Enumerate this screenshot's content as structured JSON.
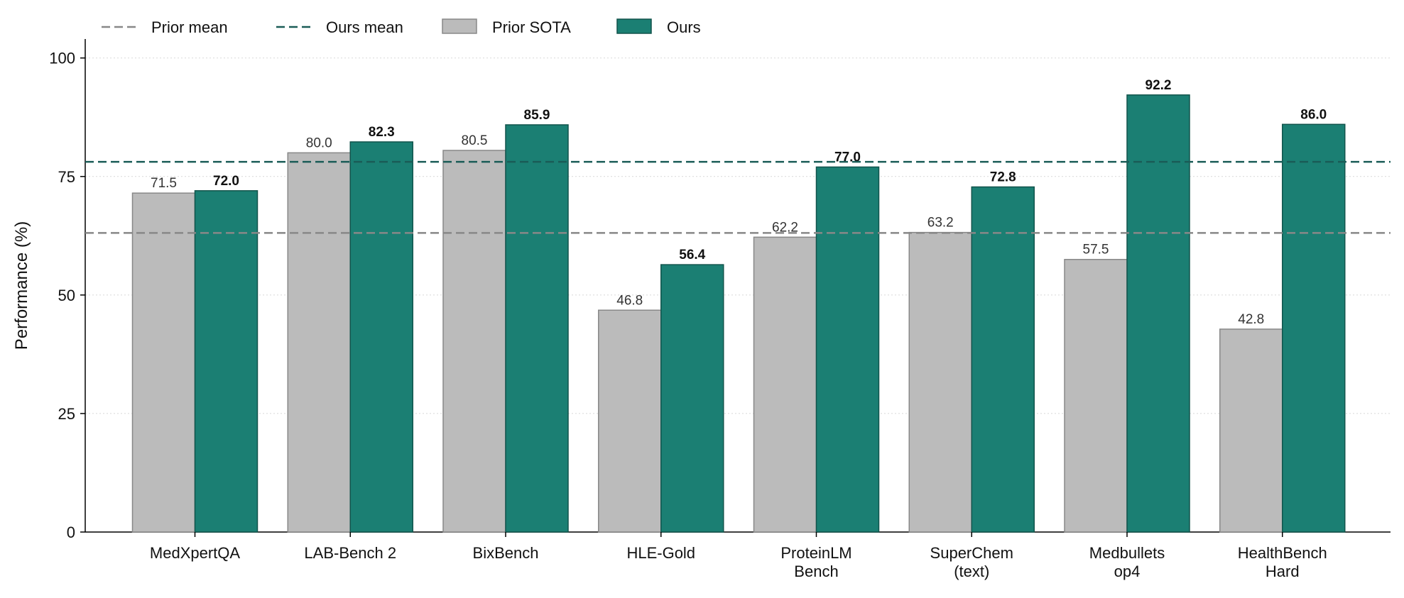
{
  "chart_data": {
    "type": "bar",
    "categories": [
      "MedXpertQA",
      "LAB-Bench 2",
      "BixBench",
      "HLE-Gold",
      "ProteinLM\nBench",
      "SuperChem\n(text)",
      "Medbullets\nop4",
      "HealthBench\nHard"
    ],
    "series": [
      {
        "name": "Prior SOTA",
        "values": [
          71.5,
          80.0,
          80.5,
          46.8,
          62.2,
          63.2,
          57.5,
          42.8
        ],
        "labels": [
          "71.5",
          "80.0",
          "80.5",
          "46.8",
          "62.2",
          "63.2",
          "57.5",
          "42.8"
        ],
        "color": "#bbbbbb",
        "edge": "#888888"
      },
      {
        "name": "Ours",
        "values": [
          72.0,
          82.3,
          85.9,
          56.4,
          77.0,
          72.8,
          92.2,
          86.0
        ],
        "labels": [
          "72.0",
          "82.3",
          "85.9",
          "56.4",
          "77.0",
          "72.8",
          "92.2",
          "86.0"
        ],
        "color": "#1b7f73",
        "edge": "#12544c"
      }
    ],
    "reference_lines": [
      {
        "name": "Prior mean",
        "value": 63.1,
        "color": "#888888",
        "style": "dashed"
      },
      {
        "name": "Ours mean",
        "value": 78.1,
        "color": "#1a5c57",
        "style": "dashed"
      }
    ],
    "ylabel": "Performance (%)",
    "xlabel": "",
    "ylim": [
      0,
      104
    ],
    "yticks": [
      0,
      25,
      50,
      75,
      100
    ],
    "grid": "y-dotted",
    "legend": {
      "placement": "top-left",
      "order": [
        "Prior mean",
        "Ours mean",
        "Prior SOTA",
        "Ours"
      ]
    }
  }
}
